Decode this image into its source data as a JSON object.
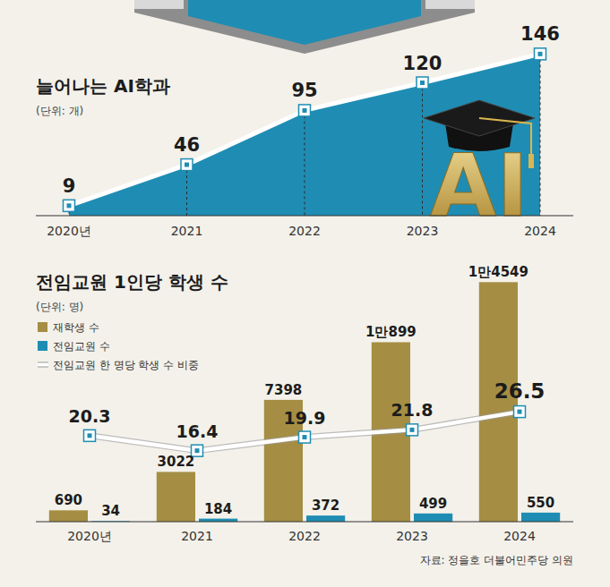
{
  "chart_data": [
    {
      "type": "area",
      "title": "늘어나는 AI학과",
      "subtitle": "(단위: 개)",
      "annotation": "AI",
      "categories": [
        "2020년",
        "2021",
        "2022",
        "2023",
        "2024"
      ],
      "values": [
        9,
        46,
        95,
        120,
        146
      ],
      "color": "#1f8db3",
      "marker": "square",
      "ylim": [
        0,
        160
      ],
      "tick_labels": "x",
      "data_labels": true
    },
    {
      "type": "bar",
      "title": "전임교원 1인당 학생 수",
      "subtitle": "(단위: 명)",
      "source": "자료: 정을호 더불어민주당 의원",
      "categories": [
        "2020년",
        "2021",
        "2022",
        "2023",
        "2024"
      ],
      "series": [
        {
          "name": "재학생 수",
          "type": "bar",
          "color": "#a58e43",
          "values": [
            690,
            3022,
            7398,
            10899,
            14549
          ],
          "value_labels": [
            "690",
            "3022",
            "7398",
            "1만899",
            "1만4549"
          ]
        },
        {
          "name": "전임교원 수",
          "type": "bar",
          "color": "#1f8db3",
          "values": [
            34,
            184,
            372,
            499,
            550
          ]
        },
        {
          "name": "전임교원 한 명당 학생 수 비중",
          "type": "line",
          "color": "#ffffff",
          "marker": "square",
          "axis": "y2",
          "values": [
            20.3,
            16.4,
            19.9,
            21.8,
            26.5
          ]
        }
      ],
      "ylim": [
        0,
        15000
      ],
      "y2lim": [
        -2,
        62
      ],
      "legend": "top-left",
      "tick_labels": "x",
      "data_labels": true
    }
  ]
}
